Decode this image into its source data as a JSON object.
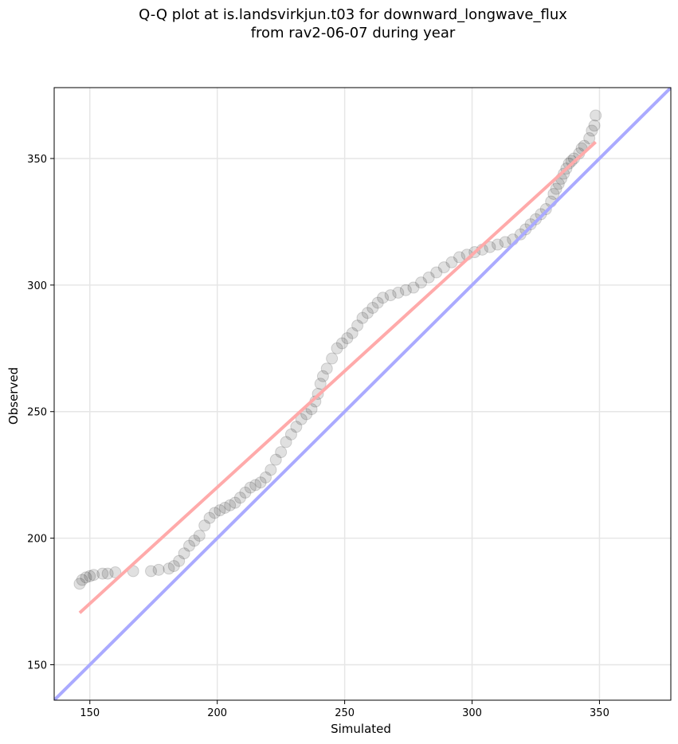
{
  "title": {
    "line1": "Q-Q plot at is.landsvirkjun.t03 for downward_longwave_flux",
    "line2": "from rav2-06-07 during year"
  },
  "chart_data": {
    "type": "scatter",
    "xlabel": "Simulated",
    "ylabel": "Observed",
    "xlim": [
      136,
      378
    ],
    "ylim": [
      136,
      378
    ],
    "xticks": [
      150,
      200,
      250,
      300,
      350
    ],
    "yticks": [
      150,
      200,
      250,
      300,
      350
    ],
    "grid": true,
    "qq_points": [
      [
        146,
        182
      ],
      [
        147,
        183.5
      ],
      [
        148.5,
        184.5
      ],
      [
        150,
        185
      ],
      [
        151.5,
        185.5
      ],
      [
        155,
        186
      ],
      [
        157,
        186
      ],
      [
        160,
        186.5
      ],
      [
        167,
        187
      ],
      [
        174,
        187
      ],
      [
        177,
        187.5
      ],
      [
        181,
        188
      ],
      [
        183,
        189
      ],
      [
        185,
        191
      ],
      [
        187,
        194
      ],
      [
        189,
        197
      ],
      [
        191,
        199
      ],
      [
        193,
        201
      ],
      [
        195,
        205
      ],
      [
        197,
        208
      ],
      [
        199,
        210
      ],
      [
        201,
        211
      ],
      [
        203,
        212
      ],
      [
        205,
        213
      ],
      [
        207,
        214
      ],
      [
        209,
        216
      ],
      [
        211,
        218
      ],
      [
        213,
        220
      ],
      [
        215,
        221
      ],
      [
        217,
        222
      ],
      [
        219,
        224
      ],
      [
        221,
        227
      ],
      [
        223,
        231
      ],
      [
        225,
        234
      ],
      [
        227,
        238
      ],
      [
        229,
        241
      ],
      [
        231,
        244
      ],
      [
        233,
        247
      ],
      [
        235,
        249
      ],
      [
        237,
        251
      ],
      [
        238.5,
        254
      ],
      [
        239.5,
        257
      ],
      [
        240.5,
        261
      ],
      [
        241.5,
        264
      ],
      [
        243,
        267
      ],
      [
        245,
        271
      ],
      [
        247,
        275
      ],
      [
        249,
        277
      ],
      [
        251,
        279
      ],
      [
        253,
        281
      ],
      [
        255,
        284
      ],
      [
        257,
        287
      ],
      [
        259,
        289
      ],
      [
        261,
        291
      ],
      [
        263,
        293
      ],
      [
        265,
        295
      ],
      [
        268,
        296
      ],
      [
        271,
        297
      ],
      [
        274,
        298
      ],
      [
        277,
        299
      ],
      [
        280,
        301
      ],
      [
        283,
        303
      ],
      [
        286,
        305
      ],
      [
        289,
        307
      ],
      [
        292,
        309
      ],
      [
        295,
        311
      ],
      [
        298,
        312
      ],
      [
        301,
        313
      ],
      [
        304,
        314
      ],
      [
        307,
        315
      ],
      [
        310,
        316
      ],
      [
        313,
        317
      ],
      [
        316,
        318
      ],
      [
        319,
        320
      ],
      [
        321,
        322
      ],
      [
        323,
        324
      ],
      [
        325,
        326
      ],
      [
        327,
        328
      ],
      [
        329,
        330
      ],
      [
        331,
        333
      ],
      [
        332,
        336
      ],
      [
        333,
        338
      ],
      [
        334,
        340
      ],
      [
        335,
        342
      ],
      [
        336,
        344
      ],
      [
        337,
        346
      ],
      [
        338,
        348
      ],
      [
        339,
        349
      ],
      [
        340,
        350
      ],
      [
        342,
        352
      ],
      [
        343,
        354
      ],
      [
        344,
        355
      ],
      [
        346,
        358
      ],
      [
        347,
        361
      ],
      [
        348,
        363
      ],
      [
        348.5,
        367
      ]
    ],
    "reference_line": {
      "color": "#aaaaff",
      "from": [
        136,
        136
      ],
      "to": [
        378,
        378
      ]
    },
    "fit_line": {
      "color": "#ffaaaa",
      "from": [
        146,
        170.5
      ],
      "to": [
        348.5,
        356.5
      ]
    },
    "point_color": "#000000",
    "colors": {
      "identity": "#aaaaff",
      "fit": "#ffaaaa",
      "grid": "#e6e6e6"
    }
  }
}
